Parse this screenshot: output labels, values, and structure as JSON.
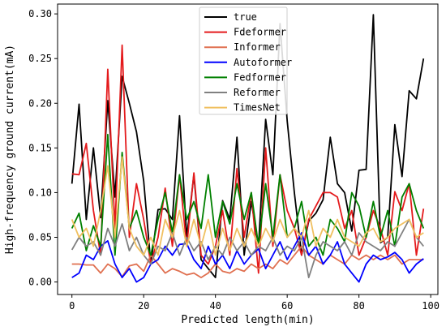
{
  "chart_data": {
    "type": "line",
    "xlabel": "Predicted length(min)",
    "ylabel": "High-frequency ground current(mA)",
    "xlim": [
      -4,
      102
    ],
    "ylim": [
      -0.014,
      0.311
    ],
    "xticks": [
      0,
      20,
      40,
      60,
      80,
      100
    ],
    "yticks": [
      0.0,
      0.05,
      0.1,
      0.15,
      0.2,
      0.25,
      0.3
    ],
    "xtick_labels": [
      "0",
      "20",
      "40",
      "60",
      "80",
      "100"
    ],
    "ytick_labels": [
      "0.00",
      "0.05",
      "0.10",
      "0.15",
      "0.20",
      "0.25",
      "0.30"
    ],
    "grid": false,
    "legend_position": "top-center",
    "x": [
      0,
      2,
      4,
      6,
      8,
      10,
      12,
      14,
      16,
      18,
      20,
      22,
      24,
      26,
      28,
      30,
      32,
      34,
      36,
      38,
      40,
      42,
      44,
      46,
      48,
      50,
      52,
      54,
      56,
      58,
      60,
      62,
      64,
      66,
      68,
      70,
      72,
      74,
      76,
      78,
      80,
      82,
      84,
      86,
      88,
      90,
      92,
      94,
      96,
      98
    ],
    "series": [
      {
        "name": "true",
        "color": "#000000",
        "values": [
          0.11,
          0.199,
          0.07,
          0.15,
          0.072,
          0.203,
          0.095,
          0.23,
          0.2,
          0.168,
          0.113,
          0.02,
          0.081,
          0.082,
          0.07,
          0.186,
          0.05,
          0.12,
          0.025,
          0.015,
          0.005,
          0.091,
          0.07,
          0.162,
          0.03,
          0.09,
          0.04,
          0.182,
          0.12,
          0.289,
          0.18,
          0.1,
          0.03,
          0.068,
          0.077,
          0.092,
          0.162,
          0.11,
          0.1,
          0.057,
          0.125,
          0.126,
          0.299,
          0.044,
          0.05,
          0.176,
          0.118,
          0.214,
          0.205,
          0.25
        ]
      },
      {
        "name": "Fdeformer",
        "color": "#e41a1c",
        "values": [
          0.121,
          0.12,
          0.155,
          0.08,
          0.03,
          0.238,
          0.06,
          0.265,
          0.05,
          0.11,
          0.07,
          0.02,
          0.05,
          0.105,
          0.04,
          0.12,
          0.04,
          0.122,
          0.03,
          0.02,
          0.04,
          0.08,
          0.03,
          0.127,
          0.05,
          0.1,
          0.01,
          0.15,
          0.04,
          0.12,
          0.08,
          0.06,
          0.03,
          0.07,
          0.085,
          0.1,
          0.1,
          0.095,
          0.06,
          0.08,
          0.03,
          0.05,
          0.08,
          0.06,
          0.03,
          0.101,
          0.08,
          0.11,
          0.03,
          0.082
        ]
      },
      {
        "name": "Informer",
        "color": "#e07050",
        "values": [
          0.02,
          0.02,
          0.019,
          0.019,
          0.01,
          0.02,
          0.015,
          0.006,
          0.018,
          0.02,
          0.012,
          0.03,
          0.02,
          0.01,
          0.015,
          0.012,
          0.008,
          0.01,
          0.005,
          0.01,
          0.02,
          0.012,
          0.01,
          0.015,
          0.012,
          0.02,
          0.015,
          0.02,
          0.015,
          0.025,
          0.02,
          0.03,
          0.04,
          0.03,
          0.025,
          0.02,
          0.03,
          0.025,
          0.02,
          0.03,
          0.025,
          0.03,
          0.025,
          0.03,
          0.025,
          0.03,
          0.02,
          0.025,
          0.025,
          0.025
        ]
      },
      {
        "name": "Autoformer",
        "color": "#0000ff",
        "values": [
          0.005,
          0.01,
          0.03,
          0.025,
          0.04,
          0.046,
          0.02,
          0.005,
          0.015,
          0.0,
          0.005,
          0.02,
          0.025,
          0.04,
          0.03,
          0.042,
          0.043,
          0.025,
          0.015,
          0.04,
          0.02,
          0.03,
          0.015,
          0.035,
          0.02,
          0.03,
          0.037,
          0.015,
          0.03,
          0.045,
          0.025,
          0.04,
          0.055,
          0.03,
          0.04,
          0.02,
          0.03,
          0.045,
          0.02,
          0.01,
          0.0,
          0.02,
          0.03,
          0.025,
          0.028,
          0.033,
          0.025,
          0.01,
          0.02,
          0.026
        ]
      },
      {
        "name": "Fedformer",
        "color": "#008000",
        "values": [
          0.06,
          0.077,
          0.035,
          0.063,
          0.04,
          0.165,
          0.03,
          0.145,
          0.06,
          0.08,
          0.05,
          0.03,
          0.07,
          0.1,
          0.055,
          0.12,
          0.07,
          0.09,
          0.06,
          0.12,
          0.05,
          0.09,
          0.065,
          0.11,
          0.07,
          0.1,
          0.04,
          0.11,
          0.05,
          0.12,
          0.05,
          0.06,
          0.09,
          0.04,
          0.05,
          0.03,
          0.07,
          0.06,
          0.045,
          0.1,
          0.085,
          0.05,
          0.09,
          0.05,
          0.08,
          0.04,
          0.095,
          0.11,
          0.08,
          0.06
        ]
      },
      {
        "name": "Reformer",
        "color": "#808080",
        "values": [
          0.036,
          0.05,
          0.04,
          0.045,
          0.03,
          0.06,
          0.04,
          0.065,
          0.035,
          0.05,
          0.03,
          0.02,
          0.04,
          0.035,
          0.055,
          0.03,
          0.05,
          0.035,
          0.045,
          0.025,
          0.04,
          0.03,
          0.05,
          0.035,
          0.045,
          0.03,
          0.04,
          0.035,
          0.05,
          0.03,
          0.04,
          0.035,
          0.05,
          0.005,
          0.03,
          0.045,
          0.04,
          0.035,
          0.045,
          0.03,
          0.055,
          0.045,
          0.04,
          0.035,
          0.045,
          0.04,
          0.055,
          0.07,
          0.05,
          0.04
        ]
      },
      {
        "name": "TimesNet",
        "color": "#f0c060",
        "values": [
          0.07,
          0.05,
          0.06,
          0.04,
          0.08,
          0.13,
          0.05,
          0.14,
          0.06,
          0.04,
          0.03,
          0.05,
          0.03,
          0.07,
          0.05,
          0.08,
          0.04,
          0.07,
          0.04,
          0.07,
          0.03,
          0.06,
          0.035,
          0.06,
          0.04,
          0.06,
          0.04,
          0.06,
          0.045,
          0.07,
          0.05,
          0.06,
          0.05,
          0.08,
          0.04,
          0.06,
          0.05,
          0.07,
          0.05,
          0.045,
          0.04,
          0.055,
          0.06,
          0.045,
          0.05,
          0.06,
          0.065,
          0.07,
          0.05,
          0.055
        ]
      }
    ]
  }
}
